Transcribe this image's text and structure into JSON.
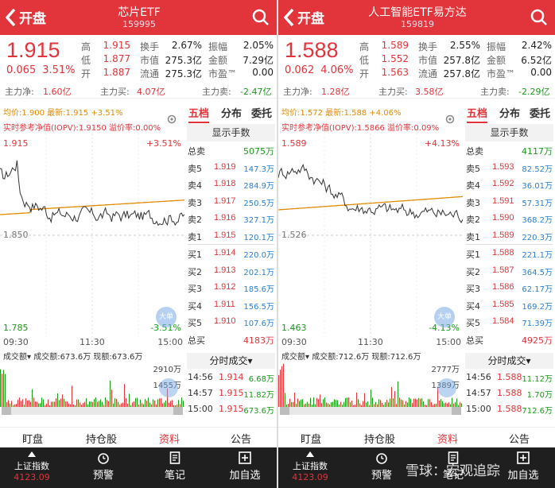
{
  "panels": [
    {
      "open_label": "开盘",
      "name": "芯片ETF",
      "code": "159995",
      "price": "1.915",
      "change": "0.065",
      "change_pct": "3.51%",
      "stats": [
        {
          "l1": "高",
          "v1": "1.915",
          "l2": "换手",
          "v2": "2.67%",
          "l3": "振幅",
          "v3": "2.05%"
        },
        {
          "l1": "低",
          "v1": "1.877",
          "l2": "市值",
          "v2": "275.3亿",
          "l3": "金额",
          "v3": "7.29亿"
        },
        {
          "l1": "开",
          "v1": "1.887",
          "l2": "流通",
          "v2": "275.3亿",
          "l3": "市盈™",
          "v3": "0.00"
        }
      ],
      "flow": {
        "net_label": "主力净:",
        "net": "1.60亿",
        "buy_label": "主力买:",
        "buy": "4.07亿",
        "sell_label": "主力卖:",
        "sell": "-2.47亿"
      },
      "avg_line": "均价:1.900 最新:1.915 +3.51%",
      "iopv": "实时参考净值(IOPV):1.9150 溢价率:0.00%",
      "chart_top": "1.915",
      "chart_top_pct": "+3.51%",
      "chart_mid": "1.850",
      "chart_bot": "1.785",
      "chart_bot_pct": "-3.51%",
      "tabs": [
        "五档",
        "分布",
        "委托"
      ],
      "ob_header": "显示手数",
      "ob_total_sell_label": "总卖",
      "ob_total_sell": "5075万",
      "asks": [
        {
          "label": "卖5",
          "price": "1.919",
          "vol": "147.3万"
        },
        {
          "label": "卖4",
          "price": "1.918",
          "vol": "284.9万"
        },
        {
          "label": "卖3",
          "price": "1.917",
          "vol": "250.5万"
        },
        {
          "label": "卖2",
          "price": "1.916",
          "vol": "327.1万"
        },
        {
          "label": "卖1",
          "price": "1.915",
          "vol": "120.1万"
        }
      ],
      "bids": [
        {
          "label": "买1",
          "price": "1.914",
          "vol": "220.0万"
        },
        {
          "label": "买2",
          "price": "1.913",
          "vol": "202.1万"
        },
        {
          "label": "买3",
          "price": "1.912",
          "vol": "185.6万"
        },
        {
          "label": "买4",
          "price": "1.911",
          "vol": "156.5万"
        },
        {
          "label": "买5",
          "price": "1.910",
          "vol": "107.6万"
        }
      ],
      "ob_total_buy_label": "总买",
      "ob_total_buy": "4183万",
      "times": [
        "09:30",
        "11:30",
        "15:00"
      ],
      "vol_header": "成交额▾ 成交额:673.6万 现额:673.6万",
      "vol_top": "2910万",
      "vol_mid": "1455万",
      "fs_header": "分时成交▾",
      "trades": [
        {
          "t": "14:56",
          "p": "1.914",
          "v": "6.68万"
        },
        {
          "t": "14:57",
          "p": "1.915",
          "v": "11.82万"
        },
        {
          "t": "15:00",
          "p": "1.915",
          "v": "673.6万"
        }
      ],
      "float_icon_text": "大单"
    },
    {
      "open_label": "开盘",
      "name": "人工智能ETF易方达",
      "code": "159819",
      "price": "1.588",
      "change": "0.062",
      "change_pct": "4.06%",
      "stats": [
        {
          "l1": "高",
          "v1": "1.589",
          "l2": "换手",
          "v2": "2.55%",
          "l3": "振幅",
          "v3": "2.42%"
        },
        {
          "l1": "低",
          "v1": "1.552",
          "l2": "市值",
          "v2": "257.8亿",
          "l3": "金额",
          "v3": "6.52亿"
        },
        {
          "l1": "开",
          "v1": "1.563",
          "l2": "流通",
          "v2": "257.8亿",
          "l3": "市盈™",
          "v3": "0.00"
        }
      ],
      "flow": {
        "net_label": "主力净:",
        "net": "1.28亿",
        "buy_label": "主力买:",
        "buy": "3.58亿",
        "sell_label": "主力卖:",
        "sell": "-2.29亿"
      },
      "avg_line": "均价:1.572 最新:1.588 +4.06%",
      "iopv": "实时参考净值(IOPV):1.5866 溢价率:0.09%",
      "chart_top": "1.589",
      "chart_top_pct": "+4.13%",
      "chart_mid": "1.526",
      "chart_bot": "1.463",
      "chart_bot_pct": "-4.13%",
      "tabs": [
        "五档",
        "分布",
        "委托"
      ],
      "ob_header": "显示手数",
      "ob_total_sell_label": "总卖",
      "ob_total_sell": "4117万",
      "asks": [
        {
          "label": "卖5",
          "price": "1.593",
          "vol": "82.52万"
        },
        {
          "label": "卖4",
          "price": "1.592",
          "vol": "36.01万"
        },
        {
          "label": "卖3",
          "price": "1.591",
          "vol": "57.31万"
        },
        {
          "label": "卖2",
          "price": "1.590",
          "vol": "368.2万"
        },
        {
          "label": "卖1",
          "price": "1.589",
          "vol": "220.3万"
        }
      ],
      "bids": [
        {
          "label": "买1",
          "price": "1.588",
          "vol": "221.1万"
        },
        {
          "label": "买2",
          "price": "1.587",
          "vol": "364.5万"
        },
        {
          "label": "买3",
          "price": "1.586",
          "vol": "62.17万"
        },
        {
          "label": "买4",
          "price": "1.585",
          "vol": "169.2万"
        },
        {
          "label": "买5",
          "price": "1.584",
          "vol": "71.39万"
        }
      ],
      "ob_total_buy_label": "总买",
      "ob_total_buy": "4925万",
      "times": [
        "09:30",
        "11:30",
        "15:00"
      ],
      "vol_header": "成交额▾ 成交额:712.6万 现额:712.6万",
      "vol_top": "2777万",
      "vol_mid": "1389万",
      "fs_header": "分时成交▾",
      "trades": [
        {
          "t": "14:56",
          "p": "1.588",
          "v": "11.12万"
        },
        {
          "t": "14:57",
          "p": "1.588",
          "v": "1.70万"
        },
        {
          "t": "15:00",
          "p": "1.588",
          "v": "712.6万"
        }
      ],
      "float_icon_text": "大单"
    }
  ],
  "subtabs": [
    "盯盘",
    "持仓股",
    "资料",
    "公告"
  ],
  "bottom": {
    "index_name": "上证指数",
    "index_value": "4123.09",
    "items": [
      "预警",
      "笔记",
      "加自选"
    ]
  },
  "watermark": "雪球：宏观追踪",
  "colors": {
    "up": "#e2343b",
    "down": "#1a9a1a",
    "header": "#e2343b",
    "avg": "#e28a00"
  }
}
